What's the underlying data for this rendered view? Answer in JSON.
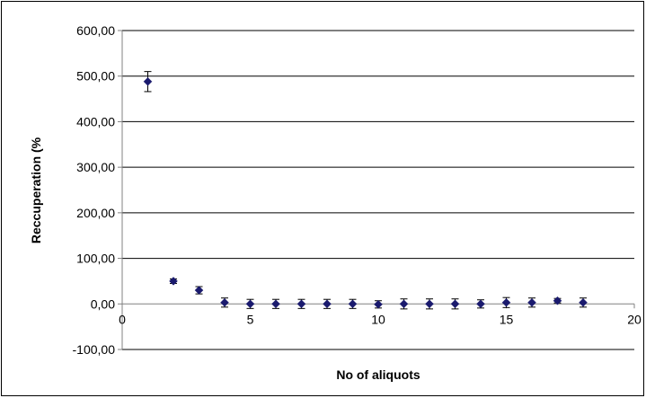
{
  "chart_data": {
    "type": "scatter",
    "title": "",
    "xlabel": "No of aliquots",
    "ylabel": "Reccuperation (%",
    "xlim": [
      0,
      20
    ],
    "ylim": [
      -100,
      600
    ],
    "x_ticks": [
      0,
      5,
      10,
      15,
      20
    ],
    "x_tick_labels": [
      "0",
      "5",
      "10",
      "15",
      "20"
    ],
    "y_ticks": [
      600,
      500,
      400,
      300,
      200,
      100,
      0,
      -100
    ],
    "y_tick_labels": [
      "600,00",
      "500,00",
      "400,00",
      "300,00",
      "200,00",
      "100,00",
      "0,00",
      "-100,00"
    ],
    "grid": "horizontal",
    "legend": "none",
    "marker": "diamond",
    "colors": {
      "marker": "#1a1a6e",
      "grid": "#000000",
      "axis": "#808080"
    },
    "series": [
      {
        "x": [
          1,
          2,
          3,
          4,
          5,
          6,
          7,
          8,
          9,
          10,
          11,
          12,
          13,
          14,
          15,
          16,
          17,
          18
        ],
        "y": [
          488,
          50,
          30,
          3,
          0,
          0,
          0,
          0,
          0,
          -1,
          0,
          0,
          0,
          0,
          3,
          3,
          7,
          3
        ],
        "error": [
          22,
          5,
          8,
          10,
          10,
          10,
          10,
          10,
          10,
          8,
          11,
          11,
          11,
          9,
          11,
          10,
          5,
          10
        ]
      }
    ]
  }
}
